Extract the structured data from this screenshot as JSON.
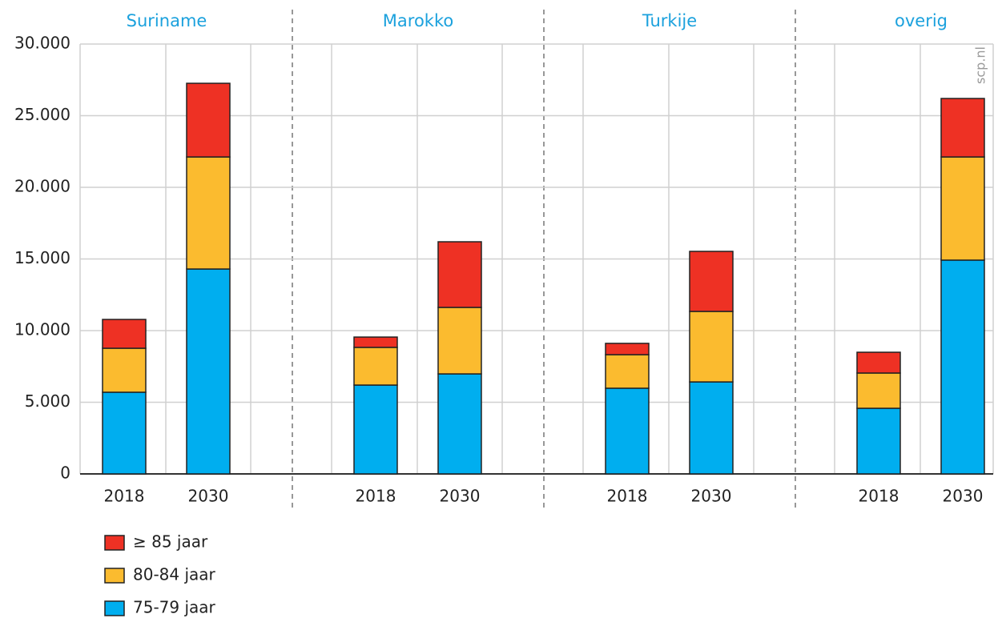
{
  "chart_data": {
    "type": "stacked-bar",
    "groups": [
      "Suriname",
      "Marokko",
      "Turkije",
      "overig"
    ],
    "categories": [
      "2018",
      "2030",
      "2018",
      "2030",
      "2018",
      "2030",
      "2018",
      "2030"
    ],
    "series": [
      {
        "name": "75-79 jaar",
        "color": "#00aeef",
        "values": [
          5700,
          14300,
          6200,
          6980,
          5980,
          6420,
          4580,
          14920
        ]
      },
      {
        "name": "80-84 jaar",
        "color": "#fbbb2f",
        "values": [
          3070,
          7820,
          2630,
          4640,
          2340,
          4920,
          2460,
          7200
        ]
      },
      {
        "name": "≥ 85 jaar",
        "color": "#ee3124",
        "values": [
          2010,
          5140,
          720,
          4580,
          790,
          4190,
          1450,
          4080
        ]
      }
    ],
    "ylim": [
      0,
      30000
    ],
    "yticks": [
      0,
      {
        "value": 5000,
        "label": "5.000"
      },
      {
        "value": 10000,
        "label": "10.000"
      },
      {
        "value": 15000,
        "label": "15.000"
      },
      {
        "value": 20000,
        "label": "20.000"
      },
      {
        "value": 25000,
        "label": "25.000"
      },
      {
        "value": 30000,
        "label": "30.000"
      }
    ],
    "grid": true,
    "source": "scp.nl"
  }
}
